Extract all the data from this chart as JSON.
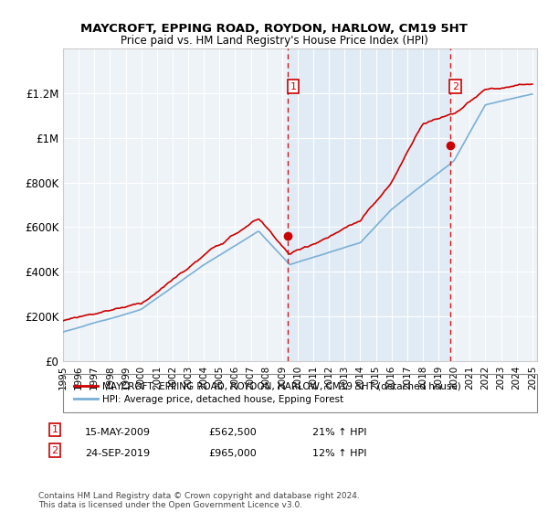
{
  "title": "MAYCROFT, EPPING ROAD, ROYDON, HARLOW, CM19 5HT",
  "subtitle": "Price paid vs. HM Land Registry's House Price Index (HPI)",
  "legend_line1": "MAYCROFT, EPPING ROAD, ROYDON, HARLOW, CM19 5HT (detached house)",
  "legend_line2": "HPI: Average price, detached house, Epping Forest",
  "annotation1_date": "15-MAY-2009",
  "annotation1_price": "£562,500",
  "annotation1_pct": "21% ↑ HPI",
  "annotation1_year": 2009.37,
  "annotation1_value": 562500,
  "annotation2_date": "24-SEP-2019",
  "annotation2_price": "£965,000",
  "annotation2_pct": "12% ↑ HPI",
  "annotation2_year": 2019.73,
  "annotation2_value": 965000,
  "footer": "Contains HM Land Registry data © Crown copyright and database right 2024.\nThis data is licensed under the Open Government Licence v3.0.",
  "hpi_color": "#7bafd4",
  "hpi_fill_color": "#dce9f5",
  "price_color": "#cc0000",
  "annotation_color": "#cc0000",
  "bg_color": "#eef3f8",
  "grid_color": "#ffffff",
  "ylim": [
    0,
    1400000
  ],
  "yticks": [
    0,
    200000,
    400000,
    600000,
    800000,
    1000000,
    1200000
  ],
  "ytick_labels": [
    "£0",
    "£200K",
    "£400K",
    "£600K",
    "£800K",
    "£1M",
    "£1.2M"
  ]
}
